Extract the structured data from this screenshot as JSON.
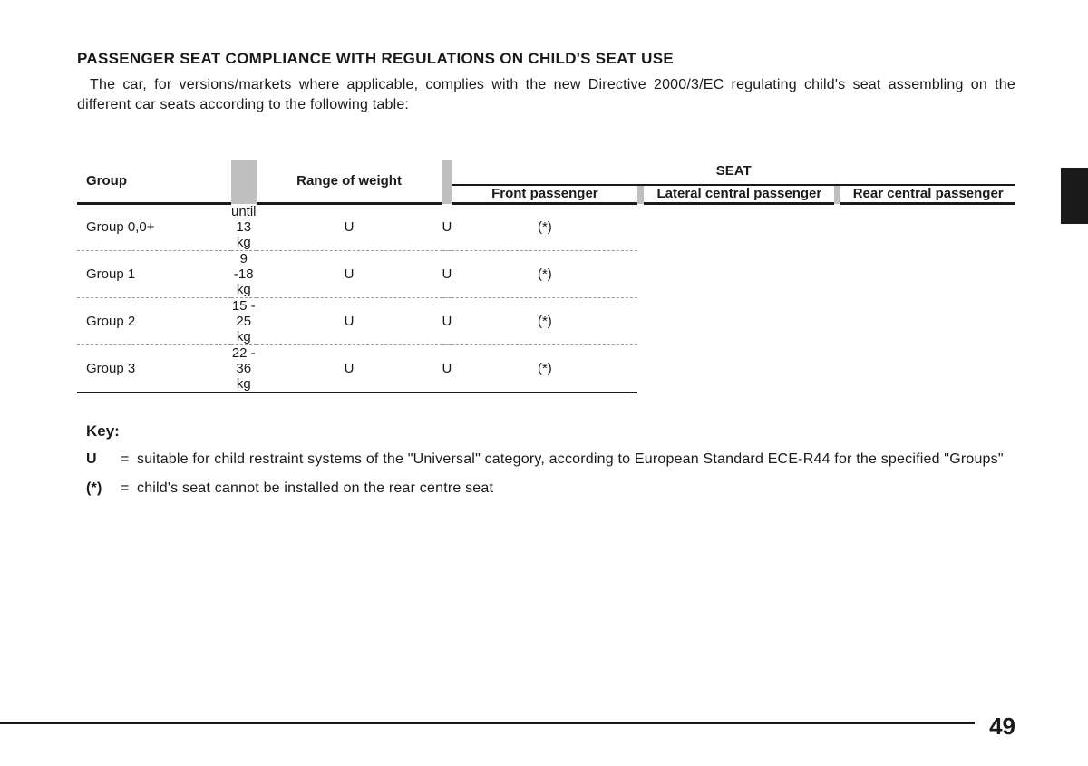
{
  "title": "PASSENGER SEAT COMPLIANCE WITH REGULATIONS ON CHILD'S SEAT USE",
  "intro": "The car, for versions/markets where applicable, complies with the new Directive 2000/3/EC regulating child's seat assembling on the different car seats according to the following table:",
  "table": {
    "headers": {
      "group": "Group",
      "range": "Range of weight",
      "seat": "SEAT",
      "front": "Front passenger",
      "lateral": "Lateral central passenger",
      "rear": "Rear central passenger"
    },
    "rows": [
      {
        "group": "Group 0,0+",
        "range": "until 13 kg",
        "front": "U",
        "lateral": "U",
        "rear": "(*)"
      },
      {
        "group": "Group 1",
        "range": "9 -18 kg",
        "front": "U",
        "lateral": "U",
        "rear": "(*)"
      },
      {
        "group": "Group 2",
        "range": "15 - 25 kg",
        "front": "U",
        "lateral": "U",
        "rear": "(*)"
      },
      {
        "group": "Group 3",
        "range": "22 - 36 kg",
        "front": "U",
        "lateral": "U",
        "rear": "(*)"
      }
    ]
  },
  "key": {
    "heading": "Key:",
    "items": [
      {
        "sym": "U",
        "text": "suitable for child restraint systems of the \"Universal\" category, according to European Standard ECE-R44 for the specified \"Groups\""
      },
      {
        "sym": "(*)",
        "text": "child's seat cannot be installed on the rear centre seat"
      }
    ]
  },
  "page_number": "49"
}
